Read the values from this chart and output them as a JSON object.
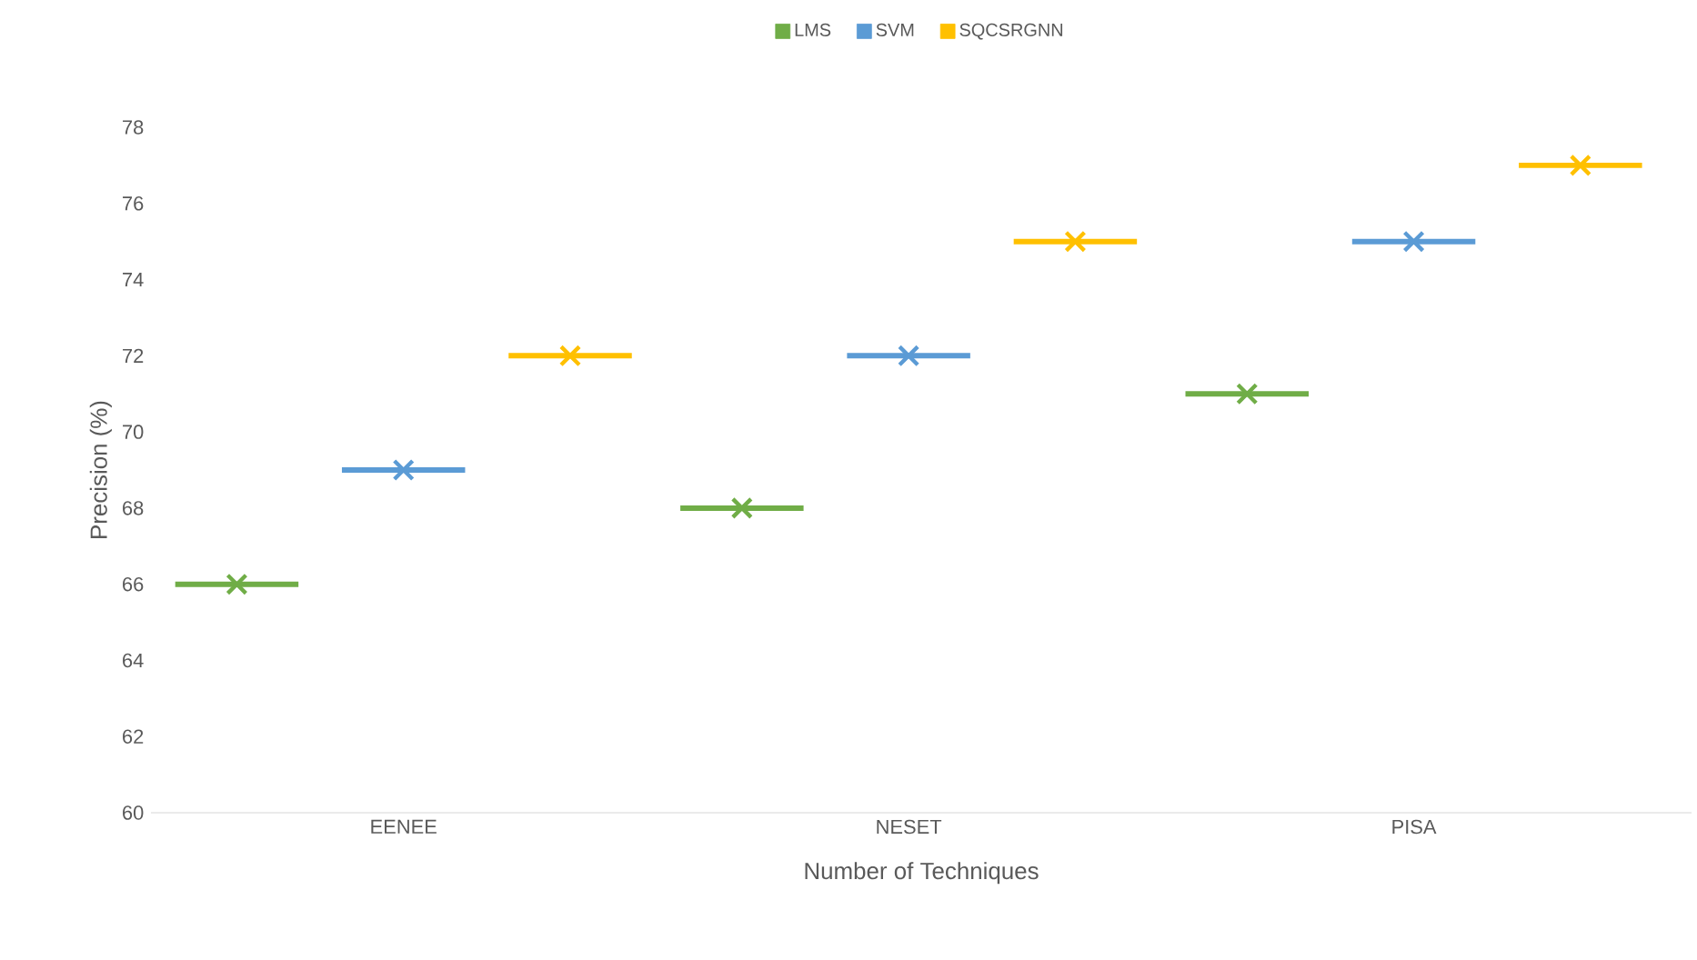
{
  "chart_data": {
    "type": "scatter",
    "xlabel": "Number of Techniques",
    "ylabel": "Precision (%)",
    "categories": [
      "EENEE",
      "NESET",
      "PISA"
    ],
    "series": [
      {
        "name": "LMS",
        "color": "#70ad47",
        "values": [
          66,
          68,
          71
        ]
      },
      {
        "name": "SVM",
        "color": "#5b9bd5",
        "values": [
          69,
          72,
          75
        ]
      },
      {
        "name": "SQCSRGNN",
        "color": "#ffc000",
        "values": [
          72,
          75,
          77
        ]
      }
    ],
    "ylim": [
      60,
      78
    ],
    "yticks": [
      60,
      62,
      64,
      66,
      68,
      70,
      72,
      74,
      76,
      78
    ],
    "legend": "top",
    "marker": "cross",
    "grid": false
  }
}
